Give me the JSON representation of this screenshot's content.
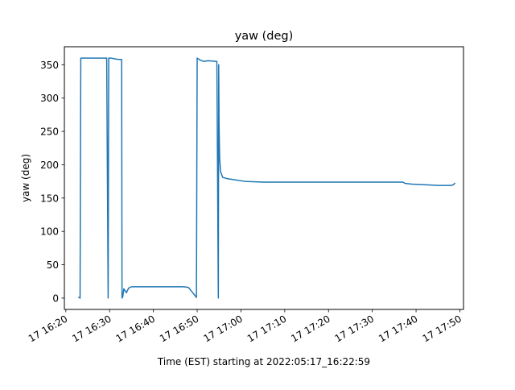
{
  "chart_data": {
    "type": "line",
    "title": "yaw (deg)",
    "xlabel": "Time (EST) starting at 2022:05:17_16:22:59",
    "ylabel": "yaw (deg)",
    "x_ticks": [
      "16:20",
      "16:30",
      "16:40",
      "16:50",
      "17:00",
      "17:10",
      "17:20",
      "17:30",
      "17:40",
      "17:50"
    ],
    "x_tick_labels": [
      "17 16:20",
      "17 16:30",
      "17 16:40",
      "17 16:50",
      "17 17:00",
      "17 17:10",
      "17 17:20",
      "17 17:30",
      "17 17:40",
      "17 17:50"
    ],
    "y_ticks": [
      0,
      50,
      100,
      150,
      200,
      250,
      300,
      350
    ],
    "xlim": [
      "16:19:40",
      "17:50:50"
    ],
    "ylim": [
      -17,
      377
    ],
    "grid": false,
    "series": [
      {
        "color": "#1f77b4",
        "points": [
          [
            "16:22:59",
            1
          ],
          [
            "16:23:15",
            0
          ],
          [
            "16:23:25",
            360
          ],
          [
            "16:25:00",
            360
          ],
          [
            "16:27:00",
            360
          ],
          [
            "16:29:00",
            360
          ],
          [
            "16:29:20",
            360
          ],
          [
            "16:29:40",
            0
          ],
          [
            "16:29:48",
            360
          ],
          [
            "16:30:20",
            360
          ],
          [
            "16:31:00",
            359
          ],
          [
            "16:32:00",
            358
          ],
          [
            "16:32:45",
            358
          ],
          [
            "16:32:50",
            0
          ],
          [
            "16:33:00",
            2
          ],
          [
            "16:33:15",
            14
          ],
          [
            "16:33:50",
            8
          ],
          [
            "16:34:20",
            15
          ],
          [
            "16:35:00",
            17
          ],
          [
            "16:36:00",
            17
          ],
          [
            "16:40:00",
            17
          ],
          [
            "16:45:00",
            17
          ],
          [
            "16:47:00",
            17
          ],
          [
            "16:48:00",
            16
          ],
          [
            "16:49:00",
            8
          ],
          [
            "16:49:50",
            1
          ],
          [
            "16:50:00",
            360
          ],
          [
            "16:50:40",
            357
          ],
          [
            "16:51:30",
            355
          ],
          [
            "16:52:30",
            356
          ],
          [
            "16:54:30",
            355
          ],
          [
            "16:54:50",
            0
          ],
          [
            "16:54:55",
            350
          ],
          [
            "16:55:00",
            260
          ],
          [
            "16:55:08",
            210
          ],
          [
            "16:55:20",
            190
          ],
          [
            "16:55:50",
            181
          ],
          [
            "16:57:00",
            179
          ],
          [
            "16:58:00",
            178
          ],
          [
            "16:59:00",
            177
          ],
          [
            "17:00:00",
            176
          ],
          [
            "17:01:00",
            175
          ],
          [
            "17:05:00",
            174
          ],
          [
            "17:20:00",
            174
          ],
          [
            "17:30:00",
            174
          ],
          [
            "17:37:00",
            174
          ],
          [
            "17:37:30",
            172
          ],
          [
            "17:39:00",
            171
          ],
          [
            "17:42:00",
            170
          ],
          [
            "17:45:00",
            169
          ],
          [
            "17:48:00",
            169
          ],
          [
            "17:48:30",
            170
          ],
          [
            "17:48:50",
            172
          ]
        ]
      }
    ]
  }
}
